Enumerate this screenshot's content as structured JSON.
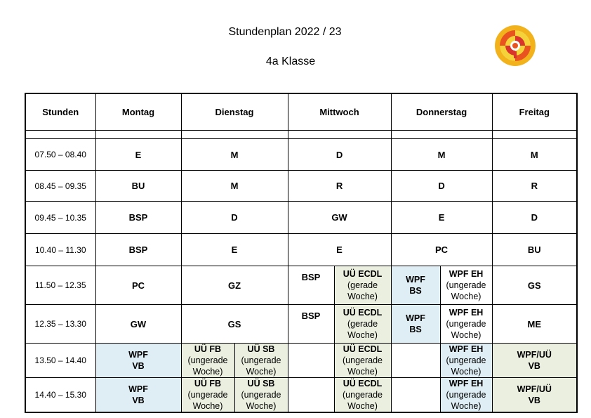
{
  "title": "Stundenplan 2022 / 23",
  "class_name": "4a Klasse",
  "colors": {
    "wpf_blue": "#deeef4",
    "ue_green": "#eaefdf"
  },
  "headers": [
    "Stunden",
    "Montag",
    "Dienstag",
    "Mittwoch",
    "Donnerstag",
    "Freitag"
  ],
  "times": [
    "07.50 – 08.40",
    "08.45 – 09.35",
    "09.45 – 10.35",
    "10.40 – 11.30",
    "11.50 – 12.35",
    "12.35 – 13.30",
    "13.50 – 14.40",
    "14.40 – 15.30"
  ],
  "simple_rows": [
    [
      "E",
      "M",
      "D",
      "M",
      "M"
    ],
    [
      "BU",
      "M",
      "R",
      "D",
      "R"
    ],
    [
      "BSP",
      "D",
      "GW",
      "E",
      "D"
    ],
    [
      "BSP",
      "E",
      "E",
      "PC",
      "BU"
    ]
  ],
  "row5": {
    "montag": "PC",
    "dienstag": "GZ",
    "mittwoch_a": "BSP",
    "mittwoch_b_title": "UÜ ECDL",
    "mittwoch_b_note1": "(gerade",
    "mittwoch_b_note2": "Woche)",
    "donnerstag_a1": "WPF",
    "donnerstag_a2": "BS",
    "donnerstag_b_title": "WPF EH",
    "donnerstag_b_note1": "(ungerade",
    "donnerstag_b_note2": "Woche)",
    "freitag": "GS"
  },
  "row6": {
    "montag": "GW",
    "dienstag": "GS",
    "mittwoch_a": "BSP",
    "mittwoch_b_title": "UÜ ECDL",
    "mittwoch_b_note1": "(gerade",
    "mittwoch_b_note2": "Woche)",
    "donnerstag_a1": "WPF",
    "donnerstag_a2": "BS",
    "donnerstag_b_title": "WPF EH",
    "donnerstag_b_note1": "(ungerade",
    "donnerstag_b_note2": "Woche)",
    "freitag": "ME"
  },
  "row7": {
    "montag1": "WPF",
    "montag2": "VB",
    "dienstag_a_title": "UÜ FB",
    "dienstag_a_note1": "(ungerade",
    "dienstag_a_note2": "Woche)",
    "dienstag_b_title": "UÜ SB",
    "dienstag_b_note1": "(ungerade",
    "dienstag_b_note2": "Woche)",
    "mittwoch_b_title": "UÜ ECDL",
    "mittwoch_b_note1": "(ungerade",
    "mittwoch_b_note2": "Woche)",
    "donnerstag_b_title": "WPF EH",
    "donnerstag_b_note1": "(ungerade",
    "donnerstag_b_note2": "Woche)",
    "freitag1": "WPF/UÜ",
    "freitag2": "VB"
  },
  "row8": {
    "montag1": "WPF",
    "montag2": "VB",
    "dienstag_a_title": "UÜ FB",
    "dienstag_a_note1": "(ungerade",
    "dienstag_a_note2": "Woche)",
    "dienstag_b_title": "UÜ SB",
    "dienstag_b_note1": "(ungerade",
    "dienstag_b_note2": "Woche)",
    "mittwoch_b_title": "UÜ ECDL",
    "mittwoch_b_note1": "(ungerade",
    "mittwoch_b_note2": "Woche)",
    "donnerstag_b_title": "WPF EH",
    "donnerstag_b_note1": "(ungerade",
    "donnerstag_b_note2": "Woche)",
    "freitag1": "WPF/UÜ",
    "freitag2": "VB"
  }
}
